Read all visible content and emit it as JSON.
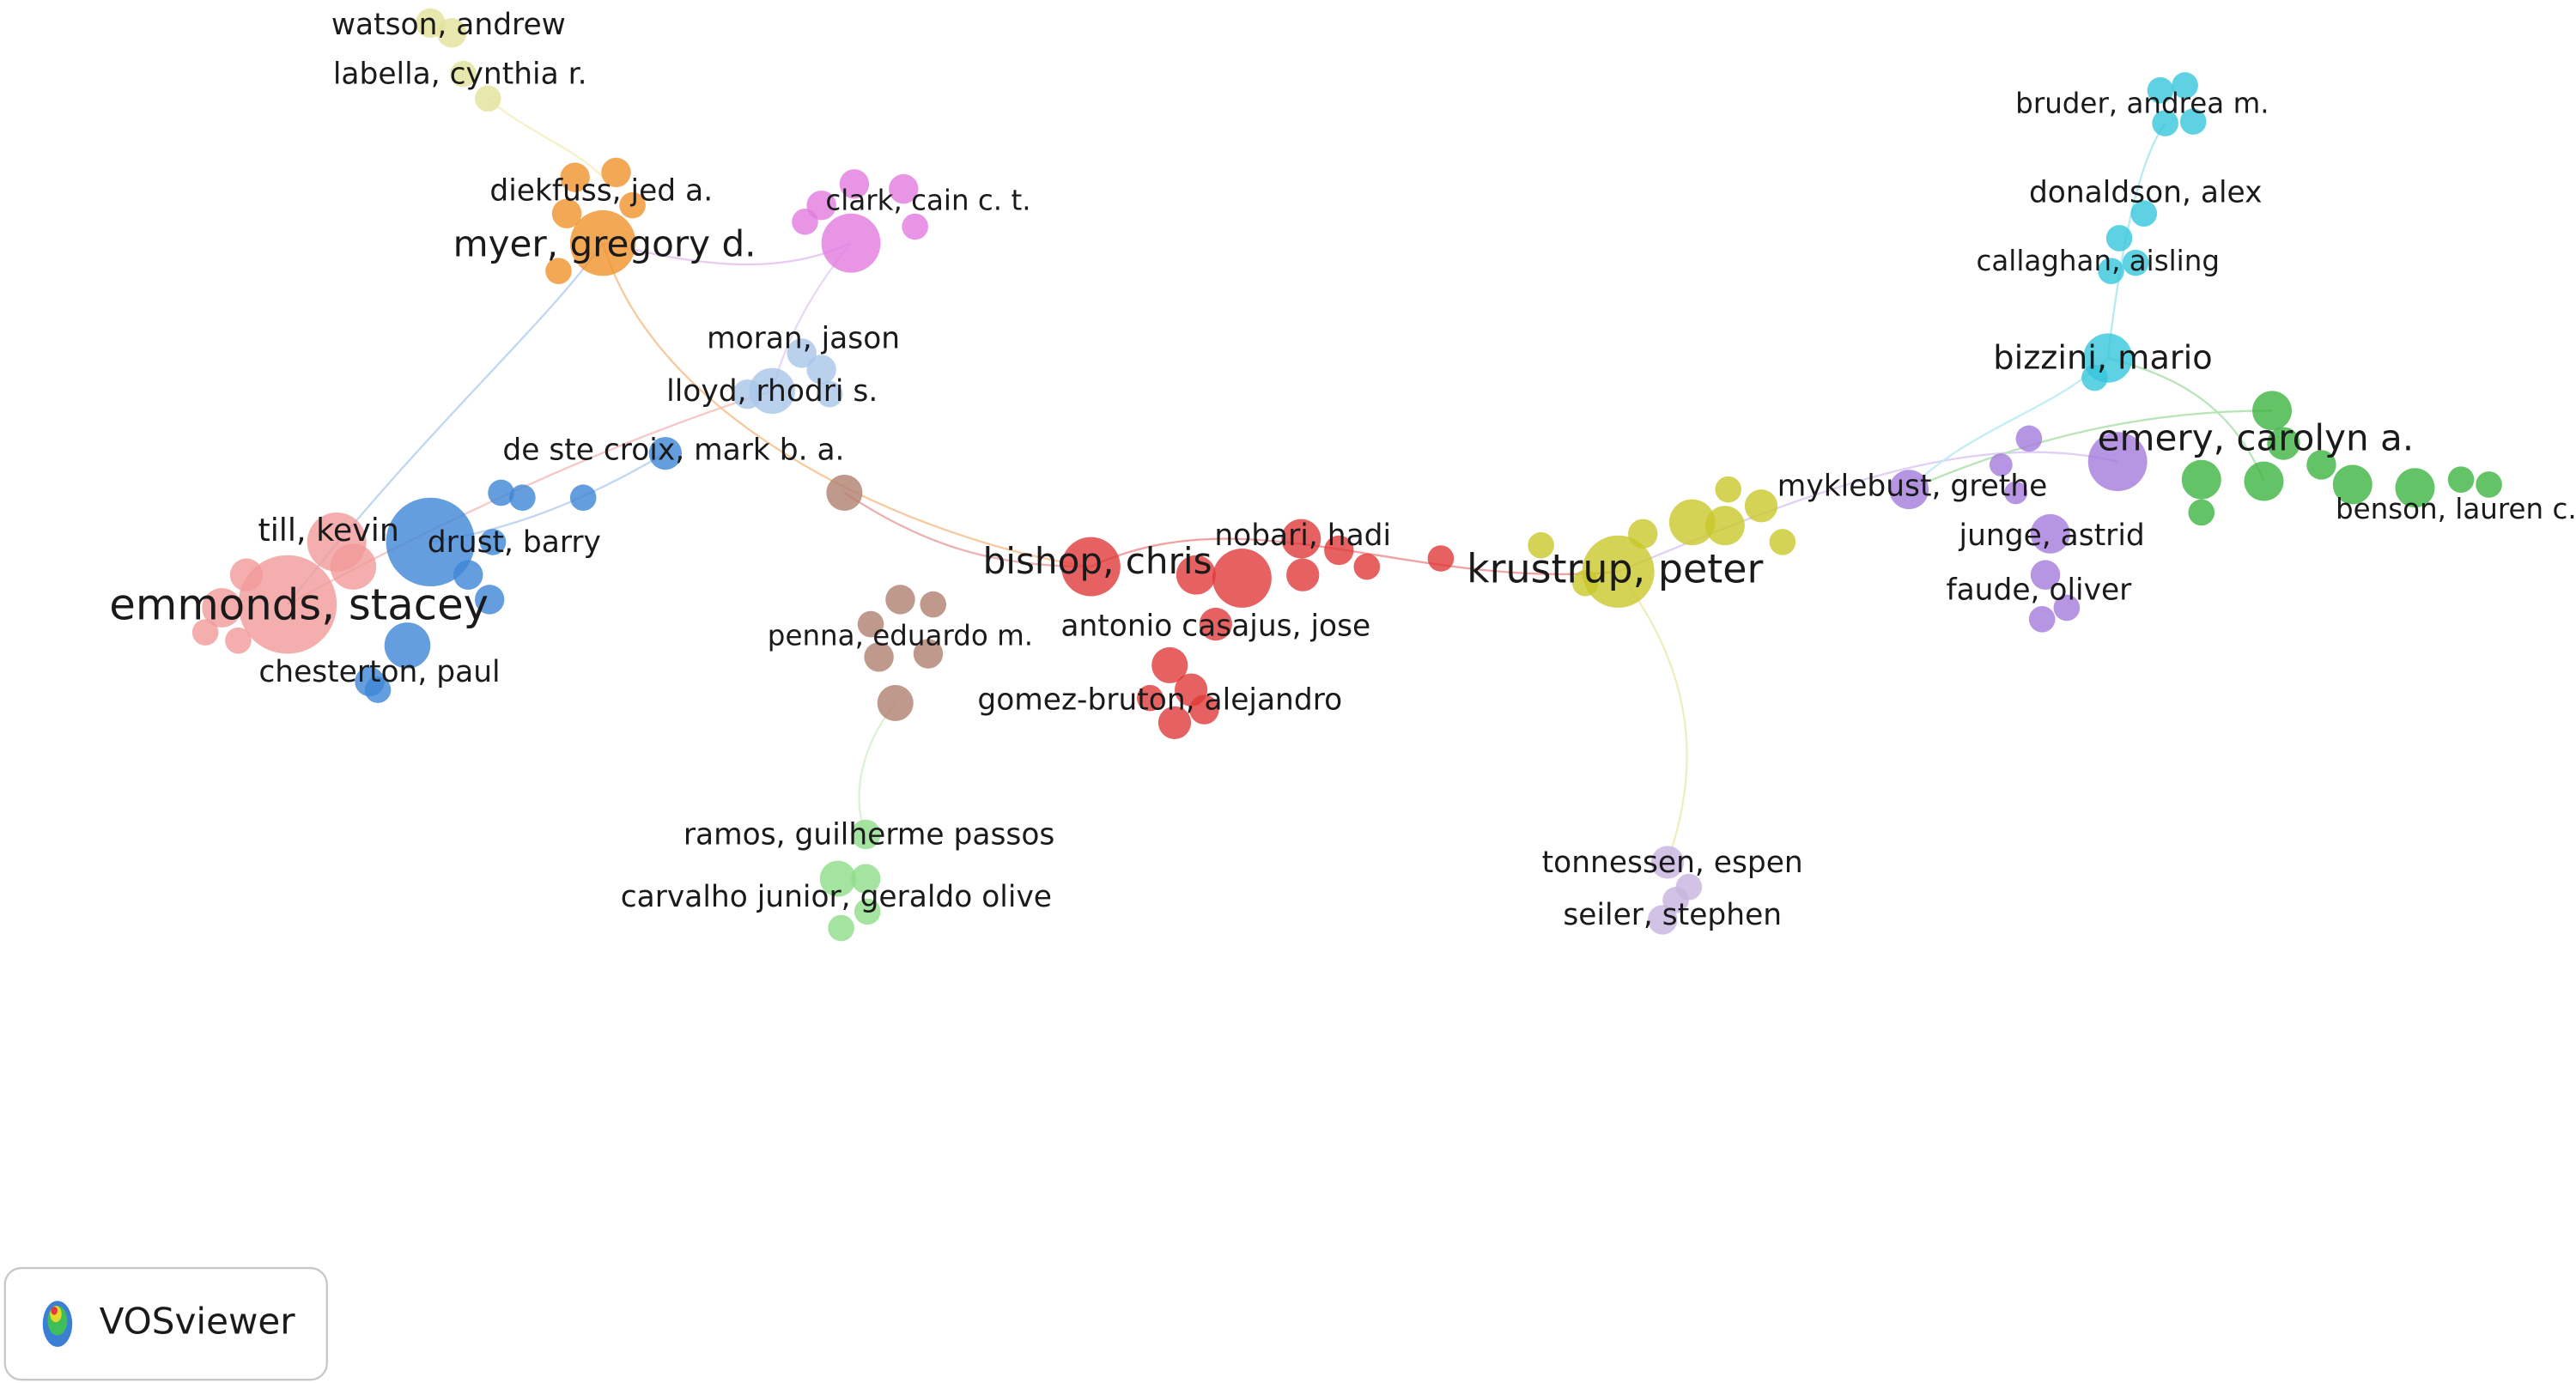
{
  "nodes": [
    {
      "label": "watson, andrew"
    },
    {
      "label": "labella, cynthia r."
    },
    {
      "label": "diekfuss, jed a."
    },
    {
      "label": "myer, gregory d."
    },
    {
      "label": "clark, cain c. t."
    },
    {
      "label": "moran, jason"
    },
    {
      "label": "lloyd, rhodri s."
    },
    {
      "label": "de ste croix, mark b. a."
    },
    {
      "label": "till, kevin"
    },
    {
      "label": "drust, barry"
    },
    {
      "label": "emmonds, stacey"
    },
    {
      "label": "chesterton, paul"
    },
    {
      "label": "penna, eduardo m."
    },
    {
      "label": "bishop, chris"
    },
    {
      "label": "nobari, hadi"
    },
    {
      "label": "antonio casajus, jose"
    },
    {
      "label": "gomez-bruton, alejandro"
    },
    {
      "label": "ramos, guilherme passos"
    },
    {
      "label": "carvalho junior, geraldo olive"
    },
    {
      "label": "krustrup, peter"
    },
    {
      "label": "tonnessen, espen"
    },
    {
      "label": "seiler, stephen"
    },
    {
      "label": "bruder, andrea m."
    },
    {
      "label": "donaldson, alex"
    },
    {
      "label": "callaghan, aisling"
    },
    {
      "label": "bizzini, mario"
    },
    {
      "label": "emery, carolyn a."
    },
    {
      "label": "myklebust, grethe"
    },
    {
      "label": "benson, lauren c."
    },
    {
      "label": "junge, astrid"
    },
    {
      "label": "faude, oliver"
    }
  ],
  "logo": {
    "text": "VOSviewer"
  }
}
